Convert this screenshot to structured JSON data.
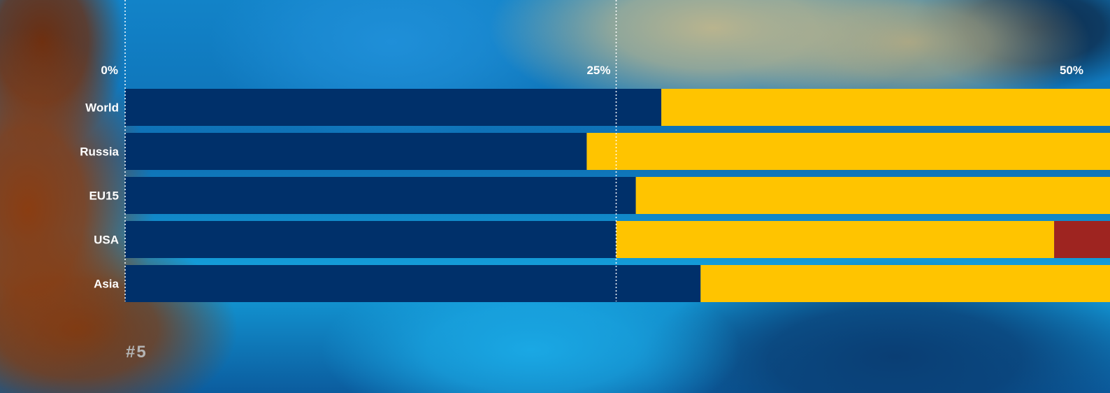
{
  "page_number": "#5",
  "colors": {
    "series_1": "#00306a",
    "series_2": "#ffc400",
    "series_3": "#9e2420",
    "text": "#ffffff",
    "page_number": "#b4b4b4"
  },
  "chart_data": {
    "type": "bar",
    "orientation": "horizontal",
    "stacked": true,
    "title": "",
    "xlabel": "",
    "ylabel": "",
    "xlim": [
      0,
      50
    ],
    "xticks": [
      0,
      25,
      50
    ],
    "xtick_labels": [
      "0%",
      "25%",
      "50%"
    ],
    "grid": true,
    "legend": "none",
    "categories": [
      "World",
      "Russia",
      "EU15",
      "USA",
      "Asia"
    ],
    "series": [
      {
        "values": [
          27.3,
          23.5,
          26.0,
          25.0,
          29.3
        ]
      },
      {
        "values": [
          22.7,
          26.5,
          24.0,
          22.3,
          20.7
        ]
      },
      {
        "values": [
          0,
          0,
          0,
          2.7,
          0
        ]
      }
    ]
  }
}
